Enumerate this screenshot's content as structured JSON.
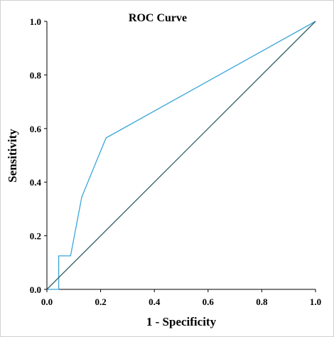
{
  "chart_data": {
    "type": "line",
    "title": "ROC Curve",
    "xlabel": "1 - Specificity",
    "ylabel": "Sensitivity",
    "xlim": [
      0.0,
      1.0
    ],
    "ylim": [
      0.0,
      1.0
    ],
    "x_ticks": [
      "0.0",
      "0.2",
      "0.4",
      "0.6",
      "0.8",
      "1.0"
    ],
    "y_ticks": [
      "0.0",
      "0.2",
      "0.4",
      "0.6",
      "0.8",
      "1.0"
    ],
    "grid": false,
    "legend": false,
    "series": [
      {
        "color": "#3aa6d8",
        "x": [
          0.0,
          0.044,
          0.044,
          0.044,
          0.088,
          0.13,
          0.22,
          1.0
        ],
        "y": [
          0.0,
          0.0,
          0.0,
          0.125,
          0.125,
          0.345,
          0.565,
          1.0
        ]
      },
      {
        "color": "#2f5f63",
        "x": [
          0.0,
          1.0
        ],
        "y": [
          0.0,
          1.0
        ]
      }
    ]
  }
}
